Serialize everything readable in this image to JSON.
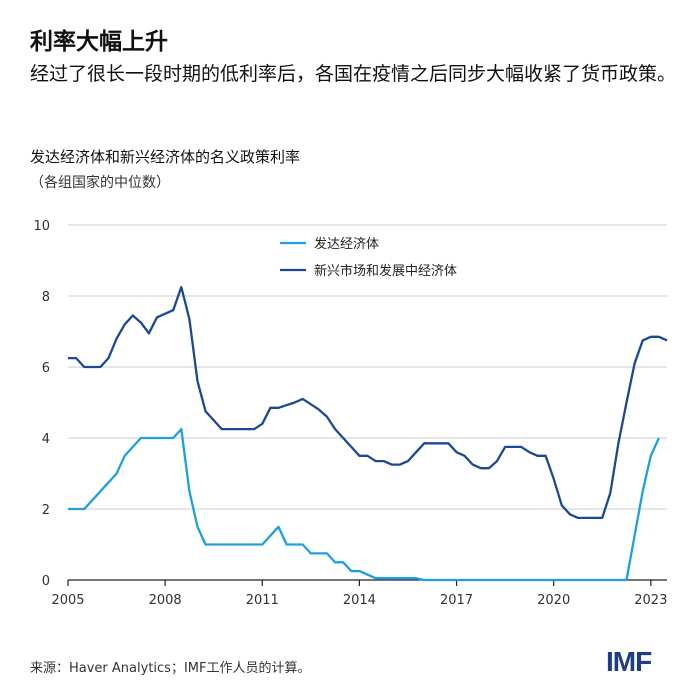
{
  "header": {
    "title": "利率大幅上升",
    "subtitle": "经过了很长一段时期的低利率后，各国在疫情之后同步大幅收紧了货币政策。"
  },
  "footer": {
    "source": "来源：Haver Analytics；IMF工作人员的计算。",
    "logo": "IMF"
  },
  "chart_data": {
    "type": "line",
    "title": "发达经济体和新兴经济体的名义政策利率",
    "subtitle": "（各组国家的中位数）",
    "xlabel": "",
    "ylabel": "",
    "xlim": [
      2005,
      2023.5
    ],
    "ylim": [
      0,
      10
    ],
    "xticks": [
      "2005",
      "2008",
      "2011",
      "2014",
      "2017",
      "2020",
      "2023"
    ],
    "yticks": [
      "0",
      "2",
      "4",
      "6",
      "8",
      "10"
    ],
    "grid": "horizontal",
    "legend": "top-center",
    "series": [
      {
        "name": "发达经济体",
        "color": "#1ea0e0",
        "x": [
          2005,
          2005.5,
          2006,
          2006.5,
          2006.75,
          2007,
          2007.25,
          2008.25,
          2008.5,
          2008.75,
          2009,
          2009.25,
          2011,
          2011.5,
          2011.75,
          2012.25,
          2012.5,
          2013,
          2013.25,
          2013.5,
          2013.75,
          2014,
          2014.5,
          2015.75,
          2016,
          2022.25,
          2022.5,
          2022.75,
          2023,
          2023.25
        ],
        "y": [
          2,
          2,
          2.5,
          3,
          3.5,
          3.75,
          4,
          4,
          4.25,
          2.5,
          1.5,
          1,
          1,
          1.5,
          1,
          1,
          0.75,
          0.75,
          0.5,
          0.5,
          0.25,
          0.25,
          0.05,
          0.05,
          0,
          0,
          1.25,
          2.5,
          3.5,
          4
        ]
      },
      {
        "name": "新兴市场和发展中经济体",
        "color": "#1a4a94",
        "x": [
          2005,
          2005.25,
          2005.5,
          2006,
          2006.25,
          2006.5,
          2006.75,
          2007,
          2007.25,
          2007.5,
          2007.75,
          2008.25,
          2008.5,
          2008.75,
          2009,
          2009.25,
          2009.75,
          2010.75,
          2011,
          2011.25,
          2011.5,
          2012,
          2012.25,
          2012.75,
          2013,
          2013.25,
          2013.75,
          2014,
          2014.25,
          2014.5,
          2014.75,
          2015,
          2015.25,
          2015.5,
          2015.75,
          2016,
          2016.75,
          2017,
          2017.25,
          2017.5,
          2017.75,
          2018,
          2018.25,
          2018.5,
          2019,
          2019.25,
          2019.5,
          2019.75,
          2020,
          2020.25,
          2020.5,
          2020.75,
          2021.5,
          2021.75,
          2022,
          2022.25,
          2022.5,
          2022.75,
          2023,
          2023.25,
          2023.5
        ],
        "y": [
          6.25,
          6.25,
          6,
          6,
          6.25,
          6.8,
          7.2,
          7.45,
          7.25,
          6.95,
          7.4,
          7.6,
          8.25,
          7.35,
          5.6,
          4.75,
          4.25,
          4.25,
          4.4,
          4.85,
          4.85,
          5,
          5.1,
          4.8,
          4.6,
          4.25,
          3.75,
          3.5,
          3.5,
          3.35,
          3.35,
          3.25,
          3.25,
          3.35,
          3.6,
          3.85,
          3.85,
          3.6,
          3.5,
          3.25,
          3.15,
          3.15,
          3.35,
          3.75,
          3.75,
          3.6,
          3.5,
          3.5,
          2.85,
          2.1,
          1.85,
          1.75,
          1.75,
          2.45,
          3.85,
          5,
          6.1,
          6.75,
          6.85,
          6.85,
          6.75
        ]
      }
    ]
  }
}
